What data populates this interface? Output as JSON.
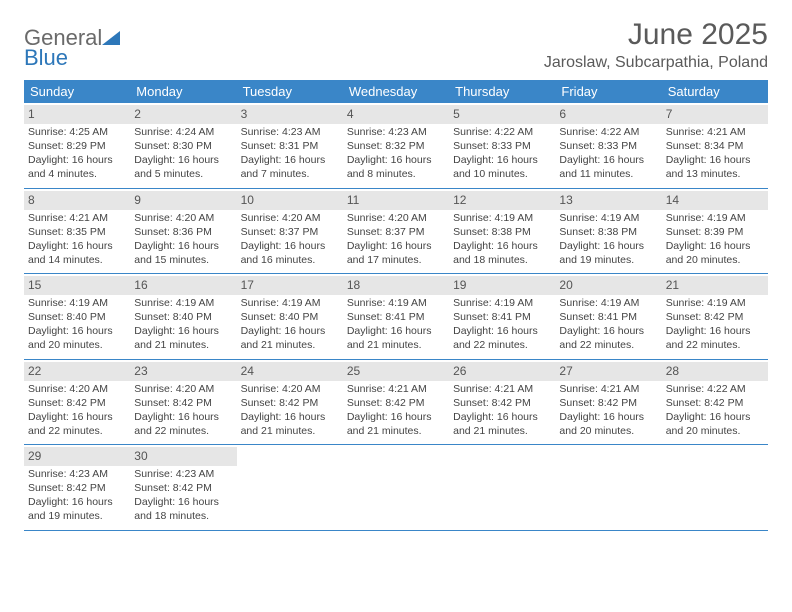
{
  "brand": {
    "part1": "General",
    "part2": "Blue"
  },
  "title": "June 2025",
  "location": "Jaroslaw, Subcarpathia, Poland",
  "colors": {
    "header_bg": "#3a86c8",
    "header_text": "#ffffff",
    "daynum_bg": "#e6e6e6",
    "divider": "#3a86c8",
    "text": "#444444",
    "brand_gray": "#6a6a6a",
    "brand_blue": "#2d77b9"
  },
  "day_headers": [
    "Sunday",
    "Monday",
    "Tuesday",
    "Wednesday",
    "Thursday",
    "Friday",
    "Saturday"
  ],
  "weeks": [
    [
      {
        "n": "1",
        "sr": "Sunrise: 4:25 AM",
        "ss": "Sunset: 8:29 PM",
        "dl1": "Daylight: 16 hours",
        "dl2": "and 4 minutes."
      },
      {
        "n": "2",
        "sr": "Sunrise: 4:24 AM",
        "ss": "Sunset: 8:30 PM",
        "dl1": "Daylight: 16 hours",
        "dl2": "and 5 minutes."
      },
      {
        "n": "3",
        "sr": "Sunrise: 4:23 AM",
        "ss": "Sunset: 8:31 PM",
        "dl1": "Daylight: 16 hours",
        "dl2": "and 7 minutes."
      },
      {
        "n": "4",
        "sr": "Sunrise: 4:23 AM",
        "ss": "Sunset: 8:32 PM",
        "dl1": "Daylight: 16 hours",
        "dl2": "and 8 minutes."
      },
      {
        "n": "5",
        "sr": "Sunrise: 4:22 AM",
        "ss": "Sunset: 8:33 PM",
        "dl1": "Daylight: 16 hours",
        "dl2": "and 10 minutes."
      },
      {
        "n": "6",
        "sr": "Sunrise: 4:22 AM",
        "ss": "Sunset: 8:33 PM",
        "dl1": "Daylight: 16 hours",
        "dl2": "and 11 minutes."
      },
      {
        "n": "7",
        "sr": "Sunrise: 4:21 AM",
        "ss": "Sunset: 8:34 PM",
        "dl1": "Daylight: 16 hours",
        "dl2": "and 13 minutes."
      }
    ],
    [
      {
        "n": "8",
        "sr": "Sunrise: 4:21 AM",
        "ss": "Sunset: 8:35 PM",
        "dl1": "Daylight: 16 hours",
        "dl2": "and 14 minutes."
      },
      {
        "n": "9",
        "sr": "Sunrise: 4:20 AM",
        "ss": "Sunset: 8:36 PM",
        "dl1": "Daylight: 16 hours",
        "dl2": "and 15 minutes."
      },
      {
        "n": "10",
        "sr": "Sunrise: 4:20 AM",
        "ss": "Sunset: 8:37 PM",
        "dl1": "Daylight: 16 hours",
        "dl2": "and 16 minutes."
      },
      {
        "n": "11",
        "sr": "Sunrise: 4:20 AM",
        "ss": "Sunset: 8:37 PM",
        "dl1": "Daylight: 16 hours",
        "dl2": "and 17 minutes."
      },
      {
        "n": "12",
        "sr": "Sunrise: 4:19 AM",
        "ss": "Sunset: 8:38 PM",
        "dl1": "Daylight: 16 hours",
        "dl2": "and 18 minutes."
      },
      {
        "n": "13",
        "sr": "Sunrise: 4:19 AM",
        "ss": "Sunset: 8:38 PM",
        "dl1": "Daylight: 16 hours",
        "dl2": "and 19 minutes."
      },
      {
        "n": "14",
        "sr": "Sunrise: 4:19 AM",
        "ss": "Sunset: 8:39 PM",
        "dl1": "Daylight: 16 hours",
        "dl2": "and 20 minutes."
      }
    ],
    [
      {
        "n": "15",
        "sr": "Sunrise: 4:19 AM",
        "ss": "Sunset: 8:40 PM",
        "dl1": "Daylight: 16 hours",
        "dl2": "and 20 minutes."
      },
      {
        "n": "16",
        "sr": "Sunrise: 4:19 AM",
        "ss": "Sunset: 8:40 PM",
        "dl1": "Daylight: 16 hours",
        "dl2": "and 21 minutes."
      },
      {
        "n": "17",
        "sr": "Sunrise: 4:19 AM",
        "ss": "Sunset: 8:40 PM",
        "dl1": "Daylight: 16 hours",
        "dl2": "and 21 minutes."
      },
      {
        "n": "18",
        "sr": "Sunrise: 4:19 AM",
        "ss": "Sunset: 8:41 PM",
        "dl1": "Daylight: 16 hours",
        "dl2": "and 21 minutes."
      },
      {
        "n": "19",
        "sr": "Sunrise: 4:19 AM",
        "ss": "Sunset: 8:41 PM",
        "dl1": "Daylight: 16 hours",
        "dl2": "and 22 minutes."
      },
      {
        "n": "20",
        "sr": "Sunrise: 4:19 AM",
        "ss": "Sunset: 8:41 PM",
        "dl1": "Daylight: 16 hours",
        "dl2": "and 22 minutes."
      },
      {
        "n": "21",
        "sr": "Sunrise: 4:19 AM",
        "ss": "Sunset: 8:42 PM",
        "dl1": "Daylight: 16 hours",
        "dl2": "and 22 minutes."
      }
    ],
    [
      {
        "n": "22",
        "sr": "Sunrise: 4:20 AM",
        "ss": "Sunset: 8:42 PM",
        "dl1": "Daylight: 16 hours",
        "dl2": "and 22 minutes."
      },
      {
        "n": "23",
        "sr": "Sunrise: 4:20 AM",
        "ss": "Sunset: 8:42 PM",
        "dl1": "Daylight: 16 hours",
        "dl2": "and 22 minutes."
      },
      {
        "n": "24",
        "sr": "Sunrise: 4:20 AM",
        "ss": "Sunset: 8:42 PM",
        "dl1": "Daylight: 16 hours",
        "dl2": "and 21 minutes."
      },
      {
        "n": "25",
        "sr": "Sunrise: 4:21 AM",
        "ss": "Sunset: 8:42 PM",
        "dl1": "Daylight: 16 hours",
        "dl2": "and 21 minutes."
      },
      {
        "n": "26",
        "sr": "Sunrise: 4:21 AM",
        "ss": "Sunset: 8:42 PM",
        "dl1": "Daylight: 16 hours",
        "dl2": "and 21 minutes."
      },
      {
        "n": "27",
        "sr": "Sunrise: 4:21 AM",
        "ss": "Sunset: 8:42 PM",
        "dl1": "Daylight: 16 hours",
        "dl2": "and 20 minutes."
      },
      {
        "n": "28",
        "sr": "Sunrise: 4:22 AM",
        "ss": "Sunset: 8:42 PM",
        "dl1": "Daylight: 16 hours",
        "dl2": "and 20 minutes."
      }
    ],
    [
      {
        "n": "29",
        "sr": "Sunrise: 4:23 AM",
        "ss": "Sunset: 8:42 PM",
        "dl1": "Daylight: 16 hours",
        "dl2": "and 19 minutes."
      },
      {
        "n": "30",
        "sr": "Sunrise: 4:23 AM",
        "ss": "Sunset: 8:42 PM",
        "dl1": "Daylight: 16 hours",
        "dl2": "and 18 minutes."
      },
      {
        "empty": true
      },
      {
        "empty": true
      },
      {
        "empty": true
      },
      {
        "empty": true
      },
      {
        "empty": true
      }
    ]
  ]
}
